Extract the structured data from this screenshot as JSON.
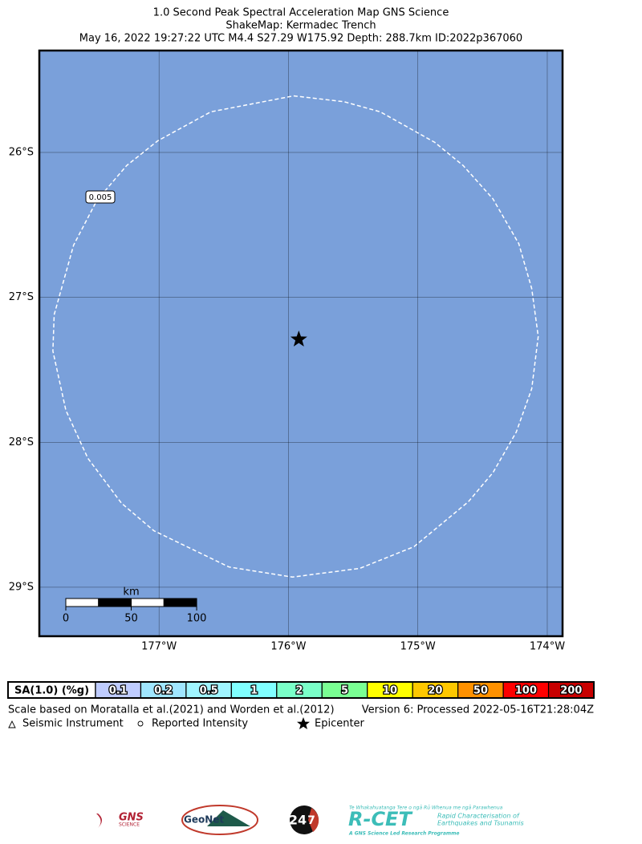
{
  "header": {
    "title_lines": [
      "1.0 Second Peak Spectral Acceleration Map GNS Science",
      "ShakeMap: Kermadec Trench",
      "May 16, 2022 19:27:22 UTC M4.4 S27.29 W175.92 Depth: 288.7km ID:2022p367060"
    ]
  },
  "map": {
    "lonlim": [
      -177.925,
      -173.882
    ],
    "latlim": [
      -25.297,
      -29.338
    ],
    "lon_ticks": [
      {
        "value": -177,
        "label": "177°W"
      },
      {
        "value": -176,
        "label": "176°W"
      },
      {
        "value": -175,
        "label": "175°W"
      },
      {
        "value": -174,
        "label": "174°W"
      }
    ],
    "lat_ticks": [
      {
        "value": -26,
        "label": "26°S"
      },
      {
        "value": -27,
        "label": "27°S"
      },
      {
        "value": -28,
        "label": "28°S"
      },
      {
        "value": -29,
        "label": "29°S"
      }
    ],
    "grid": true,
    "background": "#7aa0da",
    "epicenter": {
      "lon": -175.92,
      "lat": -27.29
    },
    "contour": {
      "label": "0.005",
      "lon": [
        -175.96,
        -175.57,
        -175.29,
        -174.87,
        -174.65,
        -174.42,
        -174.22,
        -174.12,
        -174.07,
        -174.12,
        -174.24,
        -174.42,
        -174.61,
        -175.03,
        -175.45,
        -175.97,
        -176.46,
        -177.04,
        -177.29,
        -177.55,
        -177.72,
        -177.82,
        -177.81,
        -177.66,
        -177.48,
        -177.25,
        -177.01,
        -176.6
      ],
      "lat": [
        -25.61,
        -25.65,
        -25.72,
        -25.93,
        -26.09,
        -26.32,
        -26.63,
        -26.94,
        -27.27,
        -27.63,
        -27.93,
        -28.21,
        -28.41,
        -28.72,
        -28.87,
        -28.93,
        -28.86,
        -28.61,
        -28.42,
        -28.11,
        -27.78,
        -27.37,
        -27.12,
        -26.64,
        -26.33,
        -26.09,
        -25.92,
        -25.72
      ]
    },
    "scale_bar": {
      "unit": "km",
      "ticks": [
        0,
        50,
        100
      ]
    }
  },
  "colorbar": {
    "label": "SA(1.0) (%g)",
    "values": [
      0.1,
      0.2,
      0.5,
      1,
      2,
      5,
      10,
      20,
      50,
      100,
      200
    ],
    "colors": [
      "#bfccff",
      "#a0e6ff",
      "#a0f5ff",
      "#80ffff",
      "#7affc8",
      "#7aff93",
      "#ffff00",
      "#ffc800",
      "#ff9100",
      "#ff0000",
      "#c80000"
    ]
  },
  "footer": {
    "reference": "Scale based on Moratalla et al.(2021) and Worden et al.(2012)",
    "version": "Version 6: Processed 2022-05-16T21:28:04Z",
    "legend": [
      "Seismic Instrument",
      "Reported Intensity",
      "Epicenter"
    ]
  },
  "logos": {
    "gns": "GNS",
    "gns_sub": "SCIENCE",
    "geonet": "GeoNet",
    "twentyfour": "24",
    "seven": "7",
    "rcet_top": "Te Whakahuatanga Tere o ngā Rū Whenua me ngā Parawhenua",
    "rcet": "R-CET",
    "rcet_line1": "Rapid Characterisation of",
    "rcet_line2": "Earthquakes and Tsunamis",
    "rcet_bottom": "A GNS Science Led Research Programme"
  }
}
